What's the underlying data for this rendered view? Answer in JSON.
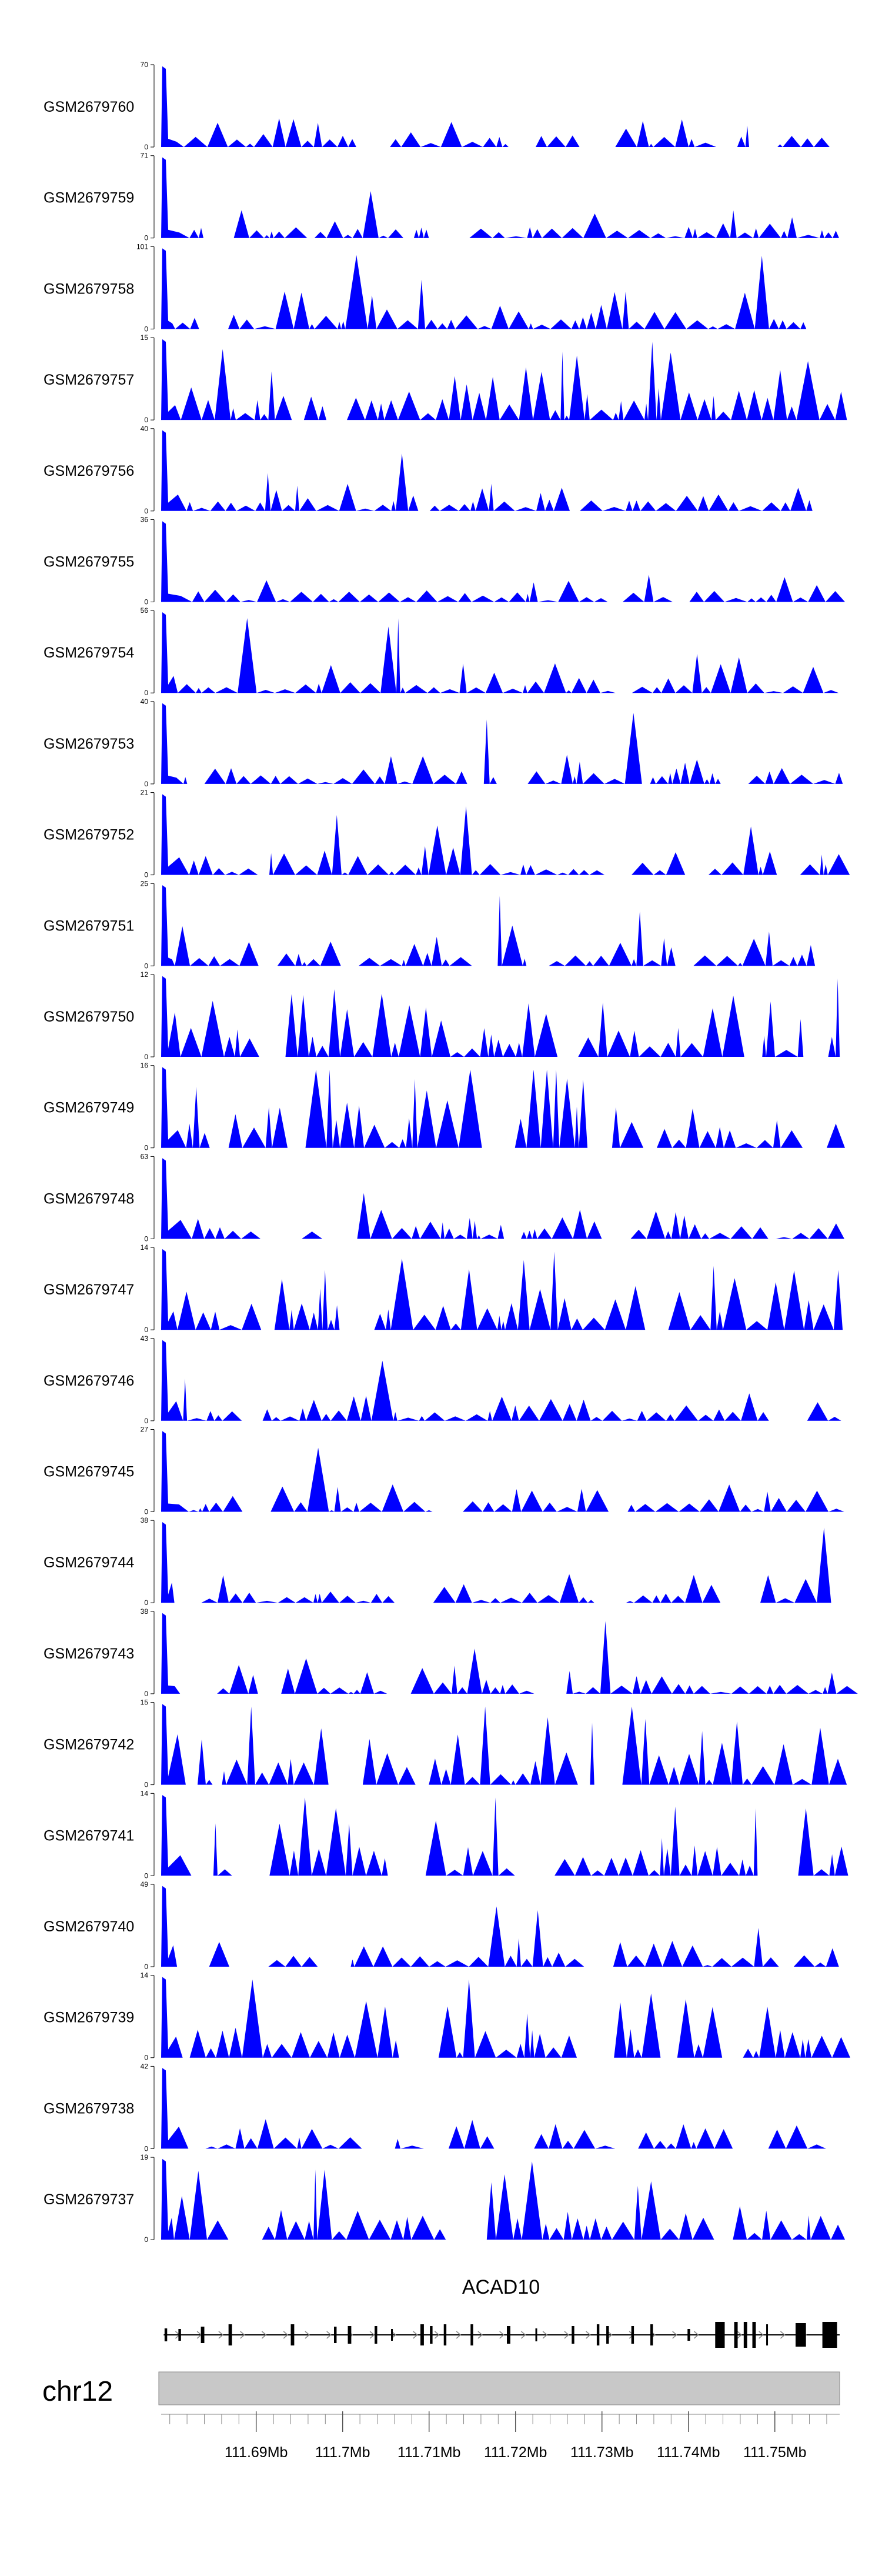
{
  "chart_data": {
    "type": "area",
    "title": "",
    "chromosome": "chr12",
    "gene": "ACAD10",
    "x_range_mb": [
      111.679,
      111.7575
    ],
    "x_ticks": [
      {
        "value": 111.69,
        "label": "111.69Mb"
      },
      {
        "value": 111.7,
        "label": "111.7Mb"
      },
      {
        "value": 111.71,
        "label": "111.71Mb"
      },
      {
        "value": 111.72,
        "label": "111.72Mb"
      },
      {
        "value": 111.73,
        "label": "111.73Mb"
      },
      {
        "value": 111.74,
        "label": "111.74Mb"
      },
      {
        "value": 111.75,
        "label": "111.75Mb"
      }
    ],
    "colors": {
      "signal": "#0000ff",
      "ideogram": "#c8c8c8",
      "gene": "#000000",
      "intron_arrow": "#888888"
    },
    "series": [
      {
        "name": "GSM2679760",
        "ymax": 70,
        "ymax_label": "70",
        "ymin_label": "0",
        "seed": 11,
        "spike": 1.0
      },
      {
        "name": "GSM2679759",
        "ymax": 71,
        "ymax_label": "71",
        "ymin_label": "0",
        "seed": 12,
        "spike": 1.0
      },
      {
        "name": "GSM2679758",
        "ymax": 101,
        "ymax_label": "101",
        "ymin_label": "0",
        "seed": 13,
        "spike": 1.0
      },
      {
        "name": "GSM2679757",
        "ymax": 15,
        "ymax_label": "15",
        "ymin_label": "0",
        "seed": 14,
        "spike": 0.9
      },
      {
        "name": "GSM2679756",
        "ymax": 40,
        "ymax_label": "40",
        "ymin_label": "0",
        "seed": 15,
        "spike": 1.0
      },
      {
        "name": "GSM2679755",
        "ymax": 36,
        "ymax_label": "36",
        "ymin_label": "0",
        "seed": 16,
        "spike": 1.0
      },
      {
        "name": "GSM2679754",
        "ymax": 56,
        "ymax_label": "56",
        "ymin_label": "0",
        "seed": 17,
        "spike": 1.0
      },
      {
        "name": "GSM2679753",
        "ymax": 40,
        "ymax_label": "40",
        "ymin_label": "0",
        "seed": 18,
        "spike": 1.0
      },
      {
        "name": "GSM2679752",
        "ymax": 21,
        "ymax_label": "21",
        "ymin_label": "0",
        "seed": 19,
        "spike": 1.0
      },
      {
        "name": "GSM2679751",
        "ymax": 25,
        "ymax_label": "25",
        "ymin_label": "0",
        "seed": 20,
        "spike": 1.0
      },
      {
        "name": "GSM2679750",
        "ymax": 12,
        "ymax_label": "12",
        "ymin_label": "0",
        "seed": 21,
        "spike": 0.9
      },
      {
        "name": "GSM2679749",
        "ymax": 16,
        "ymax_label": "16",
        "ymin_label": "0",
        "seed": 22,
        "spike": 0.9
      },
      {
        "name": "GSM2679748",
        "ymax": 63,
        "ymax_label": "63",
        "ymin_label": "0",
        "seed": 23,
        "spike": 1.0
      },
      {
        "name": "GSM2679747",
        "ymax": 14,
        "ymax_label": "14",
        "ymin_label": "0",
        "seed": 24,
        "spike": 0.9
      },
      {
        "name": "GSM2679746",
        "ymax": 43,
        "ymax_label": "43",
        "ymin_label": "0",
        "seed": 25,
        "spike": 1.0
      },
      {
        "name": "GSM2679745",
        "ymax": 27,
        "ymax_label": "27",
        "ymin_label": "0",
        "seed": 26,
        "spike": 1.0
      },
      {
        "name": "GSM2679744",
        "ymax": 38,
        "ymax_label": "38",
        "ymin_label": "0",
        "seed": 27,
        "spike": 1.0
      },
      {
        "name": "GSM2679743",
        "ymax": 38,
        "ymax_label": "38",
        "ymin_label": "0",
        "seed": 28,
        "spike": 1.0
      },
      {
        "name": "GSM2679742",
        "ymax": 15,
        "ymax_label": "15",
        "ymin_label": "0",
        "seed": 29,
        "spike": 0.9
      },
      {
        "name": "GSM2679741",
        "ymax": 14,
        "ymax_label": "14",
        "ymin_label": "0",
        "seed": 30,
        "spike": 0.9
      },
      {
        "name": "GSM2679740",
        "ymax": 49,
        "ymax_label": "49",
        "ymin_label": "0",
        "seed": 31,
        "spike": 1.0
      },
      {
        "name": "GSM2679739",
        "ymax": 14,
        "ymax_label": "14",
        "ymin_label": "0",
        "seed": 32,
        "spike": 0.9
      },
      {
        "name": "GSM2679738",
        "ymax": 42,
        "ymax_label": "42",
        "ymin_label": "0",
        "seed": 33,
        "spike": 1.0
      },
      {
        "name": "GSM2679737",
        "ymax": 19,
        "ymax_label": "19",
        "ymin_label": "0",
        "seed": 34,
        "spike": 0.9
      }
    ]
  }
}
